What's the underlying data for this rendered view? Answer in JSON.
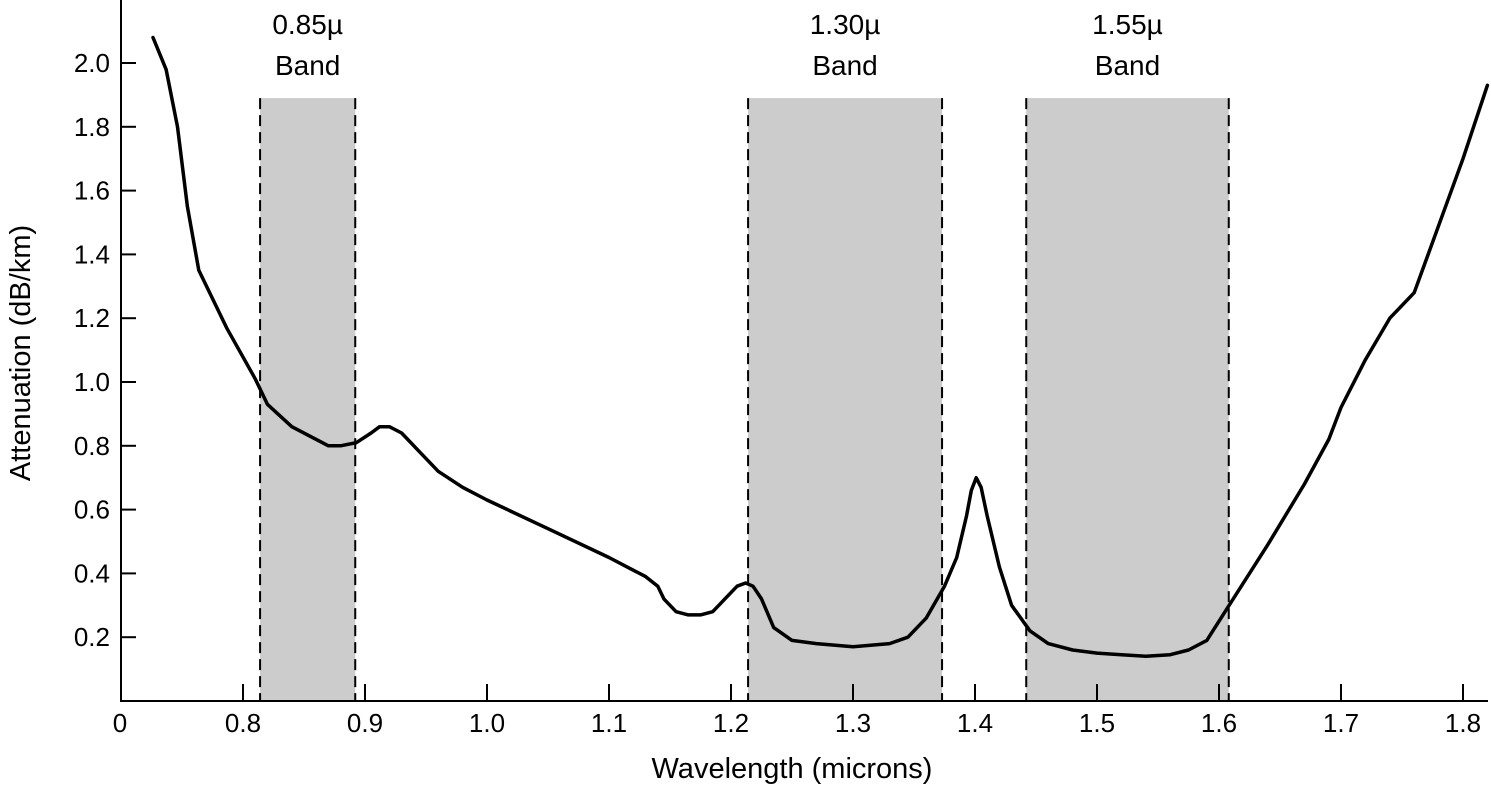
{
  "chart_data": {
    "type": "line",
    "title": "",
    "xlabel": "Wavelength (microns)",
    "ylabel": "Attenuation (dB/km)",
    "x_origin_label": "0",
    "x_tick_values": [
      0.8,
      0.9,
      1.0,
      1.1,
      1.2,
      1.3,
      1.4,
      1.5,
      1.6,
      1.7,
      1.8
    ],
    "x_tick_labels": [
      "0.8",
      "0.9",
      "1.0",
      "1.1",
      "1.2",
      "1.3",
      "1.4",
      "1.5",
      "1.6",
      "1.7",
      "1.8"
    ],
    "y_tick_values": [
      0.2,
      0.4,
      0.6,
      0.8,
      1.0,
      1.2,
      1.4,
      1.6,
      1.8,
      2.0
    ],
    "y_tick_labels": [
      "0.2",
      "0.4",
      "0.6",
      "0.8",
      "1.0",
      "1.2",
      "1.4",
      "1.6",
      "1.8",
      "2.0"
    ],
    "xlim": [
      0.72,
      1.82
    ],
    "ylim": [
      0.0,
      2.2
    ],
    "x_axis_broken": true,
    "grid": false,
    "colors": {
      "curve": "#000000",
      "band_fill": "#cccccc",
      "band_edge": "#000000",
      "axis": "#000000"
    },
    "bands": [
      {
        "label_line1": "0.85µ",
        "label_line2": "Band",
        "x_start": 0.814,
        "x_end": 0.892,
        "y_top": 1.89
      },
      {
        "label_line1": "1.30µ",
        "label_line2": "Band",
        "x_start": 1.214,
        "x_end": 1.373,
        "y_top": 1.89
      },
      {
        "label_line1": "1.55µ",
        "label_line2": "Band",
        "x_start": 1.442,
        "x_end": 1.608,
        "y_top": 1.89
      }
    ],
    "series": [
      {
        "x": [
          0.745,
          0.753,
          0.76,
          0.766,
          0.773,
          0.79,
          0.81,
          0.82,
          0.84,
          0.86,
          0.87,
          0.88,
          0.893,
          0.905,
          0.912,
          0.92,
          0.93,
          0.945,
          0.96,
          0.98,
          1.0,
          1.05,
          1.1,
          1.13,
          1.14,
          1.145,
          1.155,
          1.165,
          1.175,
          1.185,
          1.195,
          1.205,
          1.212,
          1.218,
          1.225,
          1.235,
          1.25,
          1.27,
          1.3,
          1.33,
          1.345,
          1.36,
          1.375,
          1.385,
          1.393,
          1.397,
          1.401,
          1.405,
          1.41,
          1.42,
          1.43,
          1.445,
          1.46,
          1.48,
          1.5,
          1.52,
          1.54,
          1.56,
          1.575,
          1.59,
          1.61,
          1.64,
          1.67,
          1.69,
          1.7,
          1.72,
          1.74,
          1.76,
          1.78,
          1.8,
          1.82
        ],
        "y": [
          2.08,
          1.98,
          1.8,
          1.55,
          1.35,
          1.17,
          1.01,
          0.93,
          0.86,
          0.82,
          0.8,
          0.8,
          0.81,
          0.84,
          0.86,
          0.86,
          0.84,
          0.78,
          0.72,
          0.67,
          0.63,
          0.54,
          0.45,
          0.39,
          0.36,
          0.32,
          0.28,
          0.27,
          0.27,
          0.28,
          0.32,
          0.36,
          0.37,
          0.36,
          0.32,
          0.23,
          0.19,
          0.18,
          0.17,
          0.18,
          0.2,
          0.26,
          0.36,
          0.45,
          0.58,
          0.66,
          0.7,
          0.67,
          0.58,
          0.42,
          0.3,
          0.22,
          0.18,
          0.16,
          0.15,
          0.145,
          0.14,
          0.145,
          0.16,
          0.19,
          0.31,
          0.49,
          0.68,
          0.82,
          0.92,
          1.07,
          1.2,
          1.28,
          1.49,
          1.7,
          1.93
        ]
      }
    ]
  }
}
